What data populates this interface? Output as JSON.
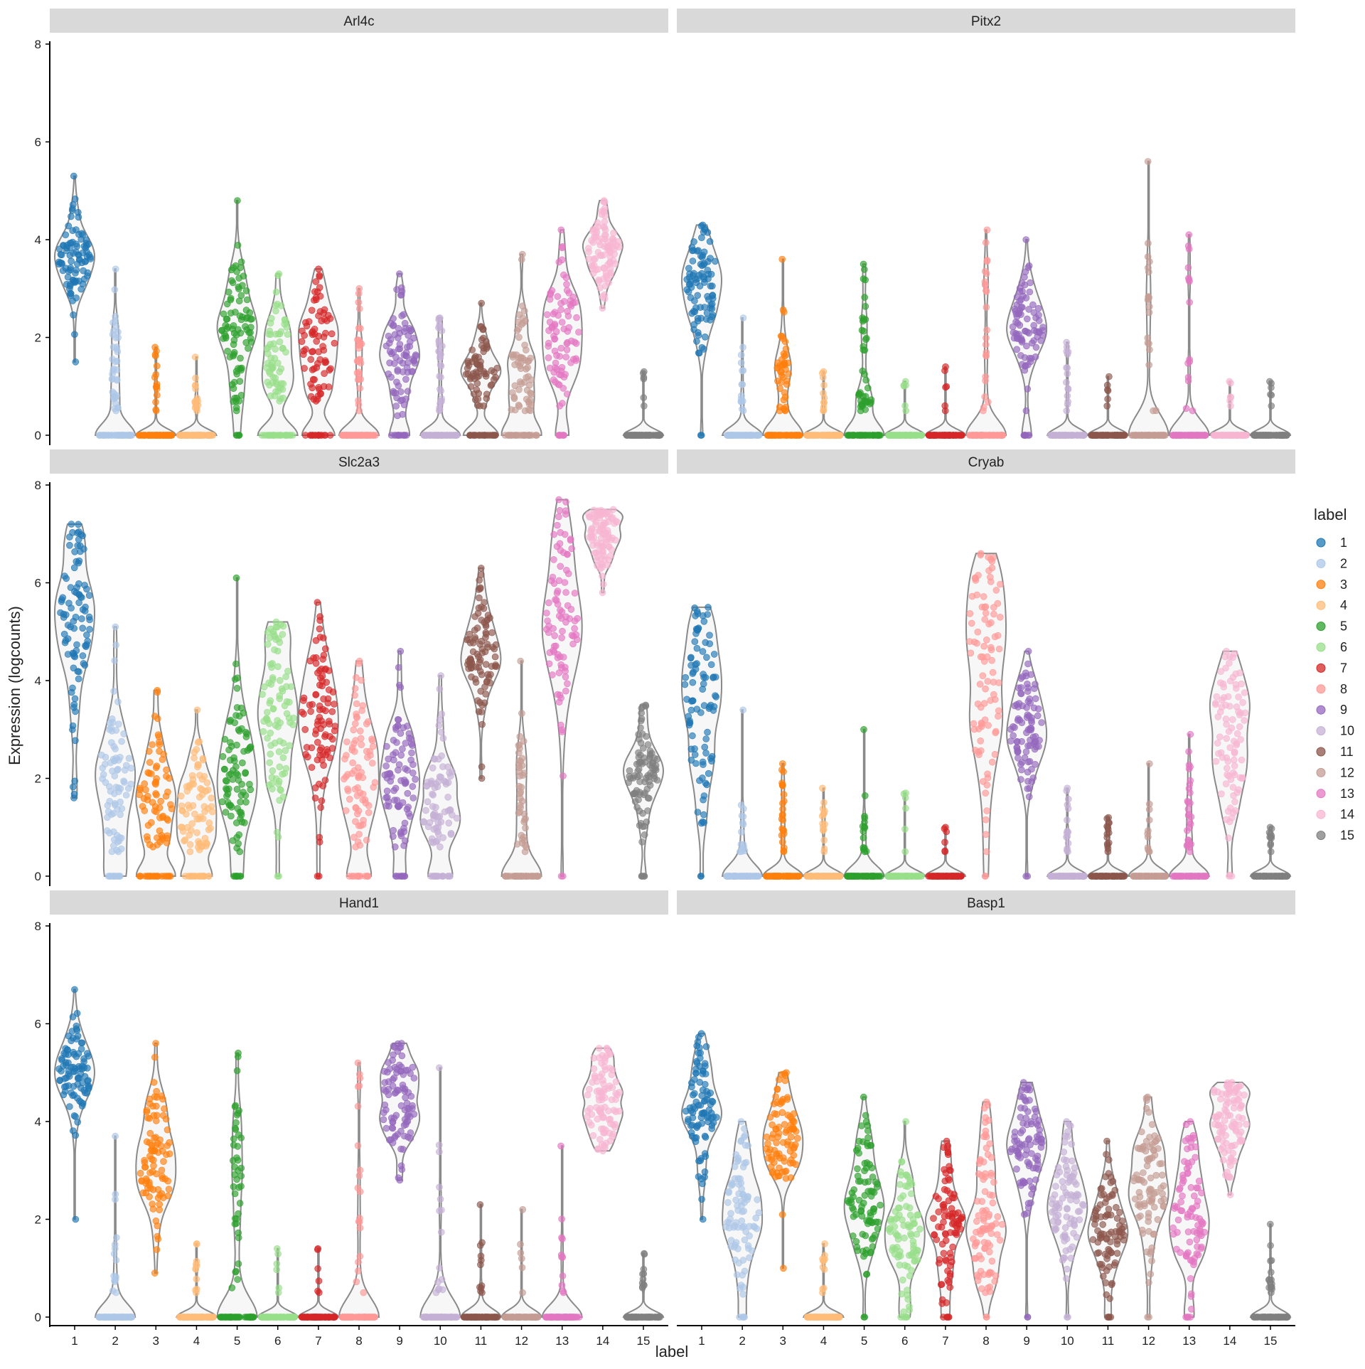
{
  "chart_data": {
    "type": "violin",
    "xlabel": "label",
    "ylabel": "Expression (logcounts)",
    "ylim": [
      0,
      8
    ],
    "yticks": [
      0,
      2,
      4,
      6,
      8
    ],
    "categories": [
      "1",
      "2",
      "3",
      "4",
      "5",
      "6",
      "7",
      "8",
      "9",
      "10",
      "11",
      "12",
      "13",
      "14",
      "15"
    ],
    "legend": {
      "title": "label",
      "placement": "right",
      "entries": [
        "1",
        "2",
        "3",
        "4",
        "5",
        "6",
        "7",
        "8",
        "9",
        "10",
        "11",
        "12",
        "13",
        "14",
        "15"
      ]
    },
    "colors": [
      "#1f77b4",
      "#aec7e8",
      "#ff7f0e",
      "#ffbb78",
      "#2ca02c",
      "#98df8a",
      "#d62728",
      "#ff9896",
      "#9467bd",
      "#c5b0d5",
      "#8c564b",
      "#c49c94",
      "#e377c2",
      "#f7b6d2",
      "#7f7f7f"
    ],
    "panels": [
      {
        "gene": "Arl4c",
        "groups": [
          {
            "zero": 0.0,
            "min": 1.5,
            "q1": 3.1,
            "median": 3.5,
            "q3": 3.8,
            "max": 5.3
          },
          {
            "zero": 0.6,
            "min": 0.5,
            "q1": 0.9,
            "median": 1.3,
            "q3": 2.1,
            "max": 3.4
          },
          {
            "zero": 0.85,
            "min": 0.5,
            "q1": 0.8,
            "median": 1.0,
            "q3": 1.3,
            "max": 1.8
          },
          {
            "zero": 0.85,
            "min": 0.5,
            "q1": 0.7,
            "median": 0.9,
            "q3": 1.1,
            "max": 1.6
          },
          {
            "zero": 0.05,
            "min": 0.5,
            "q1": 1.8,
            "median": 2.3,
            "q3": 2.9,
            "max": 4.8
          },
          {
            "zero": 0.3,
            "min": 0.7,
            "q1": 1.2,
            "median": 1.6,
            "q3": 2.1,
            "max": 3.3
          },
          {
            "zero": 0.2,
            "min": 0.7,
            "q1": 1.3,
            "median": 1.8,
            "q3": 2.3,
            "max": 3.4
          },
          {
            "zero": 0.7,
            "min": 0.5,
            "q1": 1.0,
            "median": 1.5,
            "q3": 2.0,
            "max": 3.0
          },
          {
            "zero": 0.15,
            "min": 0.4,
            "q1": 1.3,
            "median": 1.7,
            "q3": 2.2,
            "max": 3.3
          },
          {
            "zero": 0.7,
            "min": 0.5,
            "q1": 0.9,
            "median": 1.3,
            "q3": 1.8,
            "max": 2.4
          },
          {
            "zero": 0.3,
            "min": 0.6,
            "q1": 1.1,
            "median": 1.4,
            "q3": 1.7,
            "max": 2.7
          },
          {
            "zero": 0.35,
            "min": 0.5,
            "q1": 1.0,
            "median": 1.5,
            "q3": 2.1,
            "max": 3.7
          },
          {
            "zero": 0.1,
            "min": 0.6,
            "q1": 1.6,
            "median": 2.1,
            "q3": 2.6,
            "max": 4.2
          },
          {
            "zero": 0.0,
            "min": 2.6,
            "q1": 3.5,
            "median": 3.8,
            "q3": 4.1,
            "max": 4.8
          },
          {
            "zero": 0.95,
            "min": 0.6,
            "q1": 0.8,
            "median": 1.0,
            "q3": 1.2,
            "max": 1.3
          }
        ]
      },
      {
        "gene": "Pitx2",
        "groups": [
          {
            "zero": 0.02,
            "min": 0.0,
            "q1": 2.6,
            "median": 3.1,
            "q3": 3.6,
            "max": 4.3
          },
          {
            "zero": 0.85,
            "min": 0.5,
            "q1": 0.8,
            "median": 1.1,
            "q3": 1.6,
            "max": 2.4
          },
          {
            "zero": 0.55,
            "min": 0.5,
            "q1": 1.0,
            "median": 1.3,
            "q3": 1.8,
            "max": 3.6
          },
          {
            "zero": 0.9,
            "min": 0.5,
            "q1": 0.7,
            "median": 0.9,
            "q3": 1.1,
            "max": 1.3
          },
          {
            "zero": 0.55,
            "min": 0.5,
            "q1": 0.9,
            "median": 1.4,
            "q3": 2.2,
            "max": 3.5
          },
          {
            "zero": 0.95,
            "min": 0.5,
            "q1": 0.7,
            "median": 0.9,
            "q3": 1.0,
            "max": 1.1
          },
          {
            "zero": 0.95,
            "min": 0.5,
            "q1": 0.7,
            "median": 0.9,
            "q3": 1.1,
            "max": 1.4
          },
          {
            "zero": 0.75,
            "min": 0.5,
            "q1": 1.5,
            "median": 2.4,
            "q3": 3.2,
            "max": 4.2
          },
          {
            "zero": 0.1,
            "min": 0.5,
            "q1": 2.0,
            "median": 2.3,
            "q3": 2.7,
            "max": 4.0
          },
          {
            "zero": 0.85,
            "min": 0.5,
            "q1": 0.8,
            "median": 1.1,
            "q3": 1.5,
            "max": 1.9
          },
          {
            "zero": 0.95,
            "min": 0.6,
            "q1": 0.8,
            "median": 0.9,
            "q3": 1.0,
            "max": 1.2
          },
          {
            "zero": 0.8,
            "min": 0.5,
            "q1": 1.2,
            "median": 1.9,
            "q3": 2.8,
            "max": 5.6
          },
          {
            "zero": 0.85,
            "min": 0.5,
            "q1": 1.5,
            "median": 2.5,
            "q3": 3.3,
            "max": 4.1
          },
          {
            "zero": 0.95,
            "min": 0.6,
            "q1": 0.8,
            "median": 0.9,
            "q3": 1.0,
            "max": 1.1
          },
          {
            "zero": 0.95,
            "min": 0.6,
            "q1": 0.8,
            "median": 0.9,
            "q3": 1.0,
            "max": 1.1
          }
        ]
      },
      {
        "gene": "Slc2a3",
        "groups": [
          {
            "zero": 0.0,
            "min": 1.6,
            "q1": 4.2,
            "median": 5.3,
            "q3": 5.9,
            "max": 7.2
          },
          {
            "zero": 0.15,
            "min": 0.5,
            "q1": 1.3,
            "median": 1.9,
            "q3": 2.6,
            "max": 5.1
          },
          {
            "zero": 0.25,
            "min": 0.6,
            "q1": 1.2,
            "median": 1.7,
            "q3": 2.2,
            "max": 3.8
          },
          {
            "zero": 0.2,
            "min": 0.5,
            "q1": 1.0,
            "median": 1.4,
            "q3": 1.9,
            "max": 3.4
          },
          {
            "zero": 0.1,
            "min": 0.5,
            "q1": 1.4,
            "median": 2.1,
            "q3": 2.8,
            "max": 6.1
          },
          {
            "zero": 0.02,
            "min": 0.8,
            "q1": 2.5,
            "median": 3.3,
            "q3": 4.1,
            "max": 5.2
          },
          {
            "zero": 0.02,
            "min": 0.7,
            "q1": 2.8,
            "median": 3.4,
            "q3": 4.0,
            "max": 5.6
          },
          {
            "zero": 0.15,
            "min": 0.6,
            "q1": 1.6,
            "median": 2.2,
            "q3": 2.8,
            "max": 4.4
          },
          {
            "zero": 0.1,
            "min": 0.6,
            "q1": 1.5,
            "median": 2.0,
            "q3": 2.6,
            "max": 4.6
          },
          {
            "zero": 0.2,
            "min": 0.6,
            "q1": 1.1,
            "median": 1.6,
            "q3": 2.2,
            "max": 4.1
          },
          {
            "zero": 0.0,
            "min": 2.0,
            "q1": 4.1,
            "median": 4.5,
            "q3": 4.9,
            "max": 6.3
          },
          {
            "zero": 0.55,
            "min": 0.5,
            "q1": 1.1,
            "median": 1.7,
            "q3": 2.5,
            "max": 4.4
          },
          {
            "zero": 0.02,
            "min": 0.0,
            "q1": 4.5,
            "median": 5.4,
            "q3": 6.0,
            "max": 7.7
          },
          {
            "zero": 0.0,
            "min": 5.8,
            "q1": 6.7,
            "median": 7.0,
            "q3": 7.3,
            "max": 7.5
          },
          {
            "zero": 0.05,
            "min": 0.7,
            "q1": 1.7,
            "median": 2.1,
            "q3": 2.6,
            "max": 3.5
          }
        ]
      },
      {
        "gene": "Cryab",
        "groups": [
          {
            "zero": 0.02,
            "min": 0.0,
            "q1": 2.5,
            "median": 3.5,
            "q3": 4.3,
            "max": 5.5
          },
          {
            "zero": 0.85,
            "min": 0.5,
            "q1": 0.7,
            "median": 1.0,
            "q3": 1.4,
            "max": 3.4
          },
          {
            "zero": 0.75,
            "min": 0.5,
            "q1": 0.8,
            "median": 1.1,
            "q3": 1.5,
            "max": 2.3
          },
          {
            "zero": 0.85,
            "min": 0.5,
            "q1": 0.7,
            "median": 0.9,
            "q3": 1.2,
            "max": 1.8
          },
          {
            "zero": 0.85,
            "min": 0.5,
            "q1": 0.7,
            "median": 0.9,
            "q3": 1.3,
            "max": 3.0
          },
          {
            "zero": 0.95,
            "min": 0.5,
            "q1": 0.8,
            "median": 1.1,
            "q3": 1.4,
            "max": 1.7
          },
          {
            "zero": 0.95,
            "min": 0.5,
            "q1": 0.6,
            "median": 0.8,
            "q3": 0.9,
            "max": 1.0
          },
          {
            "zero": 0.02,
            "min": 0.5,
            "q1": 3.2,
            "median": 4.4,
            "q3": 5.2,
            "max": 6.6
          },
          {
            "zero": 0.02,
            "min": 0.0,
            "q1": 2.6,
            "median": 3.1,
            "q3": 3.5,
            "max": 4.6
          },
          {
            "zero": 0.85,
            "min": 0.5,
            "q1": 0.7,
            "median": 0.9,
            "q3": 1.2,
            "max": 1.8
          },
          {
            "zero": 0.85,
            "min": 0.5,
            "q1": 0.7,
            "median": 0.9,
            "q3": 1.0,
            "max": 1.2
          },
          {
            "zero": 0.9,
            "min": 0.5,
            "q1": 0.7,
            "median": 0.9,
            "q3": 1.2,
            "max": 2.3
          },
          {
            "zero": 0.7,
            "min": 0.5,
            "q1": 0.9,
            "median": 1.3,
            "q3": 1.8,
            "max": 2.9
          },
          {
            "zero": 0.02,
            "min": 0.0,
            "q1": 2.1,
            "median": 2.8,
            "q3": 3.4,
            "max": 4.6
          },
          {
            "zero": 0.9,
            "min": 0.5,
            "q1": 0.6,
            "median": 0.8,
            "q3": 0.9,
            "max": 1.0
          }
        ]
      },
      {
        "gene": "Hand1",
        "groups": [
          {
            "zero": 0.0,
            "min": 2.0,
            "q1": 4.5,
            "median": 4.9,
            "q3": 5.2,
            "max": 6.7
          },
          {
            "zero": 0.85,
            "min": 0.5,
            "q1": 0.8,
            "median": 1.3,
            "q3": 2.0,
            "max": 3.7
          },
          {
            "zero": 0.0,
            "min": 0.9,
            "q1": 2.8,
            "median": 3.3,
            "q3": 3.8,
            "max": 5.6
          },
          {
            "zero": 0.9,
            "min": 0.5,
            "q1": 0.7,
            "median": 0.9,
            "q3": 1.1,
            "max": 1.5
          },
          {
            "zero": 0.55,
            "min": 0.6,
            "q1": 1.8,
            "median": 2.6,
            "q3": 3.5,
            "max": 5.4
          },
          {
            "zero": 0.95,
            "min": 0.5,
            "q1": 0.7,
            "median": 0.9,
            "q3": 1.1,
            "max": 1.4
          },
          {
            "zero": 0.95,
            "min": 0.5,
            "q1": 0.7,
            "median": 0.9,
            "q3": 1.1,
            "max": 1.4
          },
          {
            "zero": 0.8,
            "min": 0.5,
            "q1": 1.4,
            "median": 2.5,
            "q3": 3.8,
            "max": 5.2
          },
          {
            "zero": 0.0,
            "min": 2.8,
            "q1": 4.1,
            "median": 4.5,
            "q3": 4.9,
            "max": 5.6
          },
          {
            "zero": 0.85,
            "min": 0.5,
            "q1": 1.1,
            "median": 1.8,
            "q3": 2.7,
            "max": 5.1
          },
          {
            "zero": 0.9,
            "min": 0.5,
            "q1": 0.7,
            "median": 0.9,
            "q3": 1.2,
            "max": 2.3
          },
          {
            "zero": 0.95,
            "min": 0.5,
            "q1": 0.7,
            "median": 0.9,
            "q3": 1.1,
            "max": 2.2
          },
          {
            "zero": 0.9,
            "min": 0.5,
            "q1": 0.8,
            "median": 1.2,
            "q3": 2.0,
            "max": 3.5
          },
          {
            "zero": 0.0,
            "min": 3.4,
            "q1": 4.1,
            "median": 4.5,
            "q3": 4.9,
            "max": 5.5
          },
          {
            "zero": 0.9,
            "min": 0.6,
            "q1": 0.7,
            "median": 0.8,
            "q3": 1.0,
            "max": 1.3
          }
        ]
      },
      {
        "gene": "Basp1",
        "groups": [
          {
            "zero": 0.0,
            "min": 2.0,
            "q1": 3.6,
            "median": 4.3,
            "q3": 4.7,
            "max": 5.8
          },
          {
            "zero": 0.05,
            "min": 0.0,
            "q1": 1.6,
            "median": 2.1,
            "q3": 2.6,
            "max": 4.0
          },
          {
            "zero": 0.0,
            "min": 1.0,
            "q1": 3.2,
            "median": 3.7,
            "q3": 4.0,
            "max": 5.0
          },
          {
            "zero": 0.9,
            "min": 0.5,
            "q1": 0.7,
            "median": 0.9,
            "q3": 1.1,
            "max": 1.5
          },
          {
            "zero": 0.02,
            "min": 0.0,
            "q1": 2.0,
            "median": 2.5,
            "q3": 3.0,
            "max": 4.5
          },
          {
            "zero": 0.05,
            "min": 0.0,
            "q1": 1.2,
            "median": 1.7,
            "q3": 2.2,
            "max": 4.0
          },
          {
            "zero": 0.05,
            "min": 0.0,
            "q1": 1.4,
            "median": 1.9,
            "q3": 2.4,
            "max": 3.6
          },
          {
            "zero": 0.02,
            "min": 0.5,
            "q1": 1.4,
            "median": 2.0,
            "q3": 2.8,
            "max": 4.4
          },
          {
            "zero": 0.02,
            "min": 0.0,
            "q1": 3.0,
            "median": 3.5,
            "q3": 3.9,
            "max": 4.8
          },
          {
            "zero": 0.02,
            "min": 0.0,
            "q1": 1.8,
            "median": 2.3,
            "q3": 2.8,
            "max": 4.0
          },
          {
            "zero": 0.05,
            "min": 0.0,
            "q1": 1.5,
            "median": 1.9,
            "q3": 2.4,
            "max": 3.6
          },
          {
            "zero": 0.02,
            "min": 0.0,
            "q1": 2.1,
            "median": 2.7,
            "q3": 3.2,
            "max": 4.5
          },
          {
            "zero": 0.05,
            "min": 0.0,
            "q1": 1.7,
            "median": 2.3,
            "q3": 2.9,
            "max": 4.0
          },
          {
            "zero": 0.0,
            "min": 2.5,
            "q1": 3.6,
            "median": 4.0,
            "q3": 4.4,
            "max": 4.8
          },
          {
            "zero": 0.85,
            "min": 0.5,
            "q1": 0.6,
            "median": 0.8,
            "q3": 1.0,
            "max": 1.9
          }
        ]
      }
    ]
  }
}
